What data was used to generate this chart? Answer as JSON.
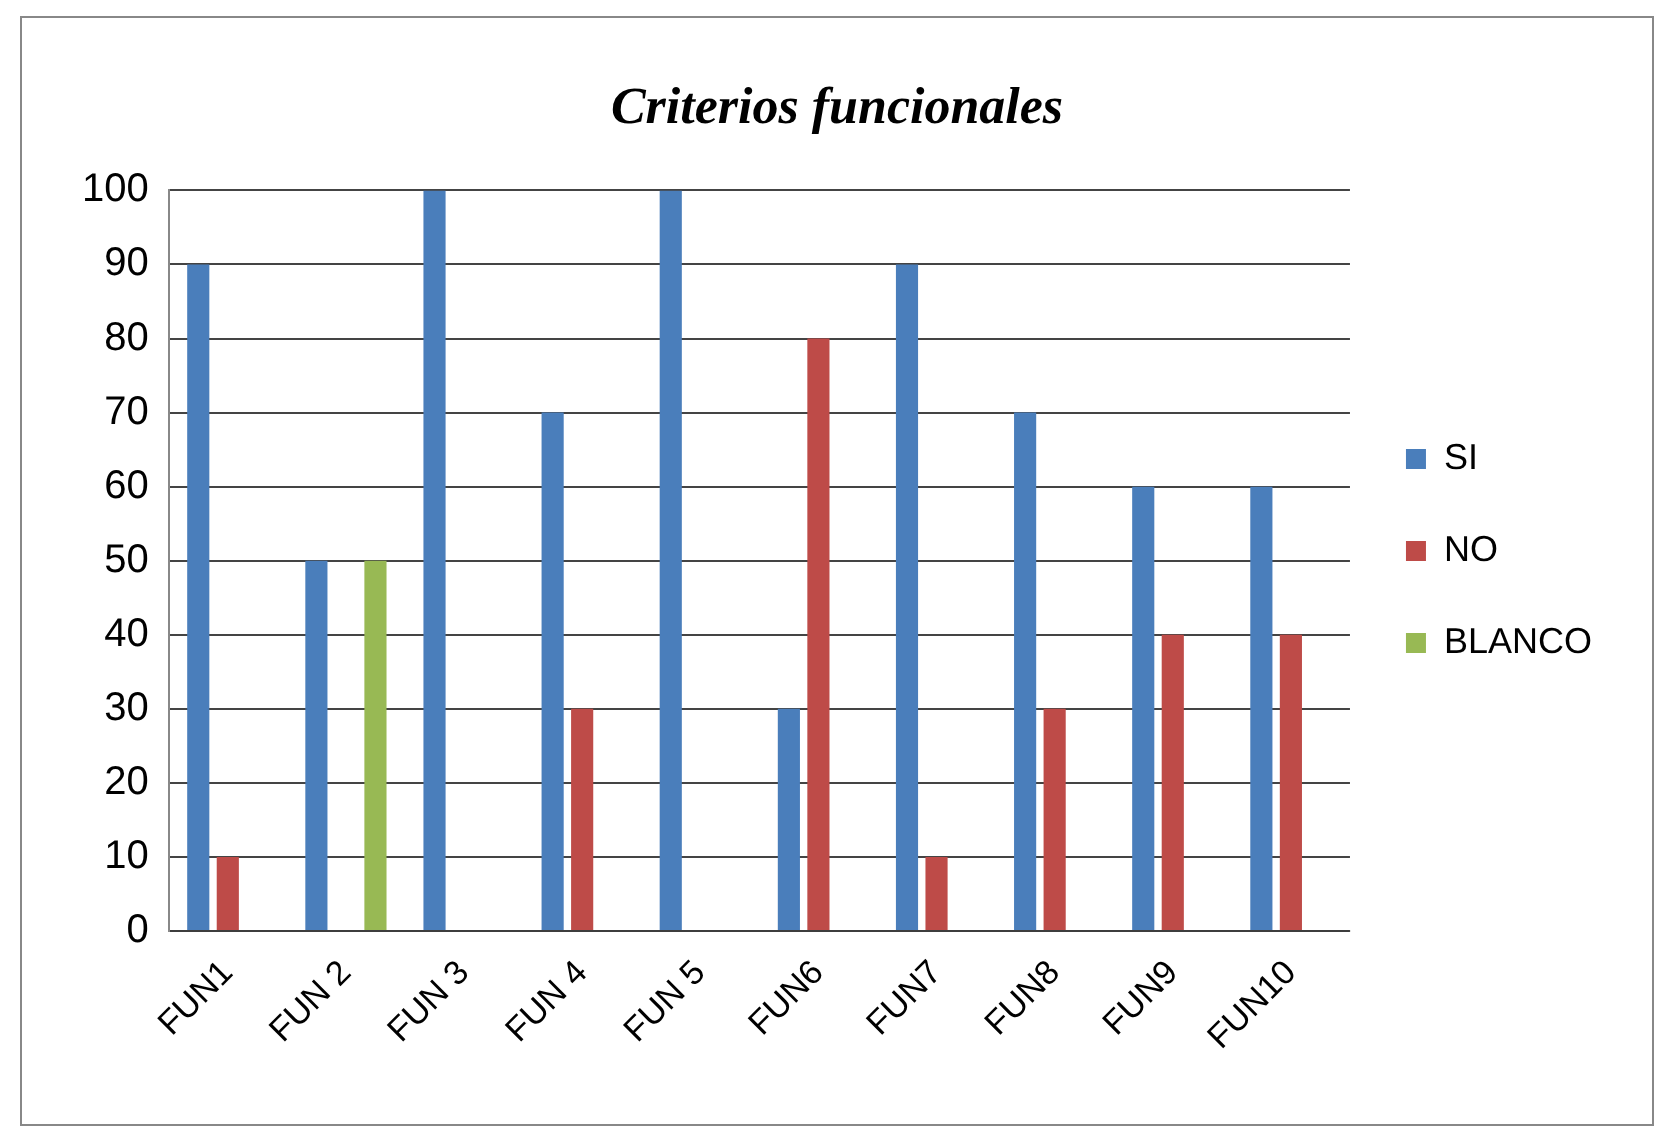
{
  "chart_data": {
    "type": "bar",
    "title": "Criterios funcionales",
    "categories": [
      "FUN1",
      "FUN 2",
      "FUN 3",
      "FUN 4",
      "FUN 5",
      "FUN6",
      "FUN7",
      "FUN8",
      "FUN9",
      "FUN10"
    ],
    "series": [
      {
        "name": "SI",
        "color": "#4a7ebb",
        "values": [
          90,
          50,
          100,
          70,
          100,
          30,
          90,
          70,
          60,
          60
        ]
      },
      {
        "name": "NO",
        "color": "#be4b48",
        "values": [
          10,
          0,
          0,
          30,
          0,
          80,
          10,
          30,
          40,
          40
        ]
      },
      {
        "name": "BLANCO",
        "color": "#98b954",
        "values": [
          0,
          50,
          0,
          0,
          0,
          0,
          0,
          0,
          0,
          0
        ]
      }
    ],
    "ylim": [
      0,
      100
    ],
    "yticks": [
      0,
      10,
      20,
      30,
      40,
      50,
      60,
      70,
      80,
      90,
      100
    ],
    "grid": "y",
    "legend": "right"
  }
}
